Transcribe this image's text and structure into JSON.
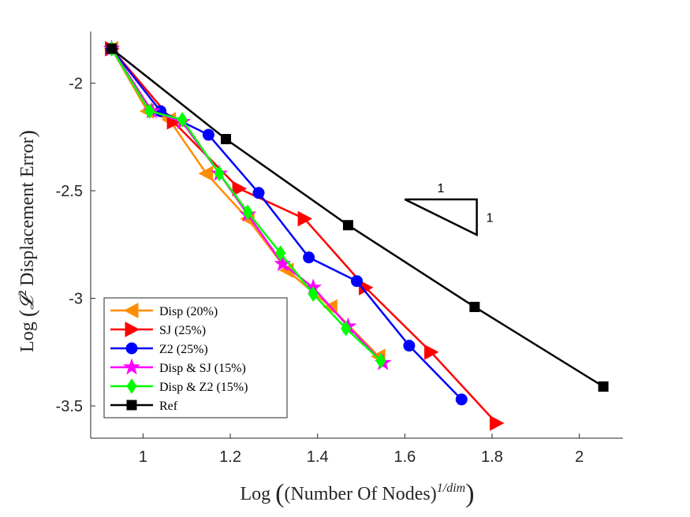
{
  "chart_data": {
    "type": "line",
    "xlabel": "Log ((Number Of Nodes)^(1/dim))",
    "xlabel_parts": {
      "prefix": "Log",
      "base": "(Number Of Nodes)",
      "exponent": "1/dim"
    },
    "ylabel": "Log (𝓛² Displacement Error)",
    "ylabel_parts": {
      "prefix": "Log",
      "script": "𝓛",
      "power": "2",
      "rest": "Displacement Error"
    },
    "xlim": [
      0.88,
      2.1
    ],
    "ylim": [
      -3.65,
      -1.76
    ],
    "xticks": [
      1,
      1.2,
      1.4,
      1.6,
      1.8,
      2
    ],
    "xtick_labels": [
      "1",
      "1.2",
      "1.4",
      "1.6",
      "1.8",
      "2"
    ],
    "yticks": [
      -2,
      -2.5,
      -3,
      -3.5
    ],
    "ytick_labels": [
      "-2",
      "-2.5",
      "-3",
      "-3.5"
    ],
    "grid": false,
    "legend_position": "bottom-left",
    "series": [
      {
        "name": "Disp (20%)",
        "color": "#FF8C00",
        "marker": "triangle-left",
        "x": [
          0.928,
          1.01,
          1.06,
          1.145,
          1.24,
          1.33,
          1.43,
          1.54
        ],
        "y": [
          -1.84,
          -2.13,
          -2.17,
          -2.42,
          -2.63,
          -2.87,
          -3.04,
          -3.27
        ]
      },
      {
        "name": "SJ (25%)",
        "color": "#FF0000",
        "marker": "triangle-right",
        "x": [
          0.928,
          1.07,
          1.22,
          1.37,
          1.51,
          1.66,
          1.81
        ],
        "y": [
          -1.84,
          -2.18,
          -2.49,
          -2.63,
          -2.95,
          -3.25,
          -3.58
        ]
      },
      {
        "name": "Z2 (25%)",
        "color": "#0000FF",
        "marker": "circle",
        "x": [
          0.928,
          1.04,
          1.15,
          1.265,
          1.38,
          1.49,
          1.61,
          1.73
        ],
        "y": [
          -1.84,
          -2.13,
          -2.24,
          -2.51,
          -2.81,
          -2.92,
          -3.22,
          -3.47
        ]
      },
      {
        "name": "Disp & SJ (15%)",
        "color": "#FF00FF",
        "marker": "star",
        "x": [
          0.928,
          1.02,
          1.09,
          1.175,
          1.24,
          1.32,
          1.39,
          1.47,
          1.55
        ],
        "y": [
          -1.84,
          -2.13,
          -2.18,
          -2.42,
          -2.61,
          -2.84,
          -2.95,
          -3.13,
          -3.3
        ]
      },
      {
        "name": "Disp & Z2 (15%)",
        "color": "#00FF00",
        "marker": "diamond",
        "x": [
          0.928,
          1.015,
          1.09,
          1.175,
          1.24,
          1.315,
          1.39,
          1.465,
          1.545
        ],
        "y": [
          -1.84,
          -2.13,
          -2.17,
          -2.42,
          -2.6,
          -2.79,
          -2.98,
          -3.14,
          -3.29
        ]
      },
      {
        "name": "Ref",
        "color": "#000000",
        "marker": "square",
        "x": [
          0.928,
          1.19,
          1.47,
          1.76,
          2.055
        ],
        "y": [
          -1.84,
          -2.26,
          -2.66,
          -3.04,
          -3.41
        ]
      }
    ],
    "annotations": {
      "slope_triangle": {
        "corners": [
          [
            1.6,
            -2.54
          ],
          [
            1.765,
            -2.54
          ],
          [
            1.765,
            -2.705
          ]
        ],
        "top_label": "1",
        "side_label": "1"
      }
    }
  }
}
